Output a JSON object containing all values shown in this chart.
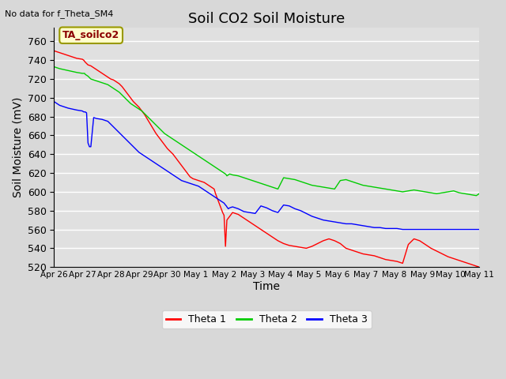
{
  "title": "Soil CO2 Soil Moisture",
  "top_left_text": "No data for f_Theta_SM4",
  "annotation_box": "TA_soilco2",
  "ylabel": "Soil Moisture (mV)",
  "xlabel": "Time",
  "ylim": [
    520,
    775
  ],
  "yticks": [
    520,
    540,
    560,
    580,
    600,
    620,
    640,
    660,
    680,
    700,
    720,
    740,
    760
  ],
  "background_color": "#d8d8d8",
  "plot_bg_color": "#e0e0e0",
  "grid_color": "white",
  "title_fontsize": 13,
  "axis_label_fontsize": 10,
  "legend_entries": [
    "Theta 1",
    "Theta 2",
    "Theta 3"
  ],
  "legend_colors": [
    "#ff0000",
    "#00cc00",
    "#0000ff"
  ],
  "xtick_labels": [
    "Apr 26",
    "Apr 27",
    "Apr 28",
    "Apr 29",
    "Apr 30",
    "May 1",
    "May 2",
    "May 3",
    "May 4",
    "May 5",
    "May 6",
    "May 7",
    "May 8",
    "May 9",
    "May 10",
    "May 11"
  ],
  "theta1_x": [
    0,
    0.2,
    0.5,
    0.8,
    1.0,
    1.05,
    1.1,
    1.2,
    1.3,
    1.5,
    1.7,
    1.9,
    2.0,
    2.1,
    2.2,
    2.3,
    2.4,
    2.5,
    2.6,
    2.7,
    2.8,
    2.9,
    3.0,
    3.1,
    3.2,
    3.3,
    3.4,
    3.5,
    3.6,
    3.7,
    3.8,
    3.9,
    4.0,
    4.1,
    4.2,
    4.3,
    4.4,
    4.5,
    4.6,
    4.7,
    4.8,
    4.9,
    5.0,
    5.1,
    5.2,
    5.3,
    5.35,
    5.4,
    5.45,
    5.5,
    5.55,
    5.6,
    5.65,
    5.7,
    5.75,
    5.8,
    5.85,
    5.9,
    5.95,
    6.0,
    6.05,
    6.1,
    6.3,
    6.5,
    6.7,
    6.9,
    7.1,
    7.3,
    7.5,
    7.7,
    7.9,
    8.1,
    8.3,
    8.5,
    8.7,
    8.9,
    9.1,
    9.3,
    9.5,
    9.7,
    9.9,
    10.1,
    10.3,
    10.5,
    10.7,
    10.9,
    11.1,
    11.3,
    11.5,
    11.7,
    11.9,
    12.1,
    12.3,
    12.5,
    12.7,
    12.9,
    13.1,
    13.3,
    13.5,
    13.7,
    13.9,
    14.1,
    14.3,
    14.5,
    14.7,
    14.9,
    15.0
  ],
  "theta1_y": [
    750,
    748,
    745,
    742,
    741,
    740,
    738,
    735,
    734,
    730,
    726,
    722,
    720,
    719,
    717,
    715,
    712,
    708,
    704,
    700,
    696,
    693,
    690,
    686,
    682,
    677,
    672,
    667,
    662,
    658,
    654,
    650,
    646,
    643,
    640,
    636,
    632,
    628,
    624,
    620,
    616,
    614,
    613,
    612,
    611,
    610,
    609,
    608,
    607,
    606,
    605,
    604,
    603,
    598,
    594,
    590,
    586,
    582,
    578,
    575,
    542,
    570,
    578,
    576,
    572,
    568,
    564,
    560,
    556,
    552,
    548,
    545,
    543,
    542,
    541,
    540,
    542,
    545,
    548,
    550,
    548,
    545,
    540,
    538,
    536,
    534,
    533,
    532,
    530,
    528,
    527,
    526,
    524,
    544,
    550,
    548,
    544,
    540,
    537,
    534,
    531,
    529,
    527,
    525,
    523,
    521,
    520
  ],
  "theta2_x": [
    0,
    0.2,
    0.5,
    0.8,
    1.0,
    1.05,
    1.08,
    1.1,
    1.15,
    1.2,
    1.3,
    1.5,
    1.7,
    1.9,
    2.0,
    2.1,
    2.2,
    2.3,
    2.4,
    2.5,
    2.6,
    2.7,
    2.8,
    2.9,
    3.0,
    3.1,
    3.2,
    3.3,
    3.4,
    3.5,
    3.6,
    3.7,
    3.8,
    3.9,
    4.0,
    4.1,
    4.2,
    4.3,
    4.4,
    4.5,
    4.6,
    4.7,
    4.8,
    4.9,
    5.0,
    5.1,
    5.2,
    5.3,
    5.4,
    5.5,
    5.6,
    5.7,
    5.8,
    5.9,
    6.0,
    6.05,
    6.08,
    6.1,
    6.15,
    6.2,
    6.3,
    6.5,
    6.7,
    6.9,
    7.1,
    7.3,
    7.5,
    7.7,
    7.9,
    8.1,
    8.3,
    8.5,
    8.7,
    8.9,
    9.1,
    9.3,
    9.5,
    9.7,
    9.9,
    10.1,
    10.3,
    10.5,
    10.7,
    10.9,
    11.1,
    11.3,
    11.5,
    11.7,
    11.9,
    12.1,
    12.3,
    12.5,
    12.7,
    12.9,
    13.1,
    13.3,
    13.5,
    13.7,
    13.9,
    14.1,
    14.3,
    14.5,
    14.7,
    14.9,
    15.0
  ],
  "theta2_y": [
    733,
    731,
    729,
    727,
    726,
    726,
    726,
    725,
    724,
    723,
    720,
    718,
    716,
    714,
    712,
    710,
    708,
    706,
    703,
    700,
    697,
    694,
    692,
    690,
    688,
    686,
    683,
    680,
    677,
    674,
    671,
    668,
    665,
    662,
    660,
    658,
    656,
    654,
    652,
    650,
    648,
    646,
    644,
    642,
    640,
    638,
    636,
    634,
    632,
    630,
    628,
    626,
    624,
    622,
    620,
    619,
    618,
    617,
    618,
    619,
    618,
    617,
    615,
    613,
    611,
    609,
    607,
    605,
    603,
    615,
    614,
    613,
    611,
    609,
    607,
    606,
    605,
    604,
    603,
    612,
    613,
    611,
    609,
    607,
    606,
    605,
    604,
    603,
    602,
    601,
    600,
    601,
    602,
    601,
    600,
    599,
    598,
    599,
    600,
    601,
    599,
    598,
    597,
    596,
    598
  ],
  "theta3_x": [
    0,
    0.2,
    0.5,
    0.8,
    1.0,
    1.05,
    1.08,
    1.1,
    1.15,
    1.2,
    1.25,
    1.3,
    1.4,
    1.5,
    1.7,
    1.9,
    2.0,
    2.1,
    2.2,
    2.3,
    2.4,
    2.5,
    2.6,
    2.7,
    2.8,
    2.9,
    3.0,
    3.1,
    3.2,
    3.3,
    3.4,
    3.5,
    3.6,
    3.7,
    3.8,
    3.9,
    4.0,
    4.1,
    4.2,
    4.3,
    4.4,
    4.5,
    4.6,
    4.7,
    4.8,
    4.9,
    5.0,
    5.1,
    5.2,
    5.3,
    5.4,
    5.5,
    5.6,
    5.7,
    5.8,
    5.9,
    6.0,
    6.05,
    6.08,
    6.1,
    6.15,
    6.2,
    6.3,
    6.5,
    6.7,
    6.9,
    7.1,
    7.3,
    7.5,
    7.7,
    7.9,
    8.1,
    8.3,
    8.5,
    8.7,
    8.9,
    9.1,
    9.3,
    9.5,
    9.7,
    9.9,
    10.1,
    10.3,
    10.5,
    10.7,
    10.9,
    11.1,
    11.3,
    11.5,
    11.7,
    11.9,
    12.1,
    12.3,
    12.5,
    12.7,
    12.9,
    13.1,
    13.3,
    13.5,
    13.7,
    13.9,
    14.1,
    14.3,
    14.5,
    14.7,
    14.9,
    15.0
  ],
  "theta3_y": [
    696,
    692,
    689,
    687,
    686,
    685,
    685,
    685,
    684,
    652,
    648,
    648,
    679,
    678,
    677,
    675,
    672,
    669,
    666,
    663,
    660,
    657,
    654,
    651,
    648,
    645,
    642,
    640,
    638,
    636,
    634,
    632,
    630,
    628,
    626,
    624,
    622,
    620,
    618,
    616,
    614,
    612,
    611,
    610,
    609,
    608,
    607,
    606,
    604,
    602,
    600,
    598,
    596,
    594,
    592,
    590,
    588,
    586,
    585,
    584,
    582,
    583,
    584,
    582,
    579,
    578,
    577,
    585,
    583,
    580,
    578,
    586,
    585,
    582,
    580,
    577,
    574,
    572,
    570,
    569,
    568,
    567,
    566,
    566,
    565,
    564,
    563,
    562,
    562,
    561,
    561,
    561,
    560,
    560,
    560,
    560,
    560,
    560,
    560,
    560,
    560,
    560,
    560,
    560,
    560,
    560,
    560
  ]
}
